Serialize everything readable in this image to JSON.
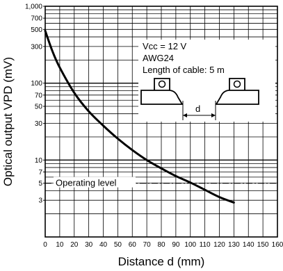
{
  "chart_data": {
    "type": "line",
    "xlabel": "Distance d (mm)",
    "ylabel": "Optical output VPD (mV)",
    "xlim": [
      0,
      160
    ],
    "ylim": [
      1,
      1000
    ],
    "y_scale": "log",
    "grid": true,
    "x_ticks": [
      "0",
      "10",
      "20",
      "30",
      "40",
      "50",
      "60",
      "70",
      "80",
      "90",
      "100",
      "110",
      "120",
      "130",
      "140",
      "150",
      "160"
    ],
    "y_ticks": [
      {
        "value": 1000,
        "label": "1,000"
      },
      {
        "value": 700,
        "label": "700"
      },
      {
        "value": 500,
        "label": "500"
      },
      {
        "value": 300,
        "label": "300"
      },
      {
        "value": 100,
        "label": "100"
      },
      {
        "value": 70,
        "label": "70"
      },
      {
        "value": 50,
        "label": "50"
      },
      {
        "value": 30,
        "label": "30"
      },
      {
        "value": 10,
        "label": "10"
      },
      {
        "value": 7,
        "label": "7"
      },
      {
        "value": 5,
        "label": "5"
      },
      {
        "value": 3,
        "label": "3"
      }
    ],
    "series": [
      {
        "x": [
          0,
          5,
          10,
          20,
          30,
          40,
          50,
          60,
          70,
          80,
          90,
          100,
          110,
          120,
          130
        ],
        "y": [
          480,
          260,
          160,
          75,
          43,
          28,
          19,
          13.5,
          10,
          7.8,
          6.2,
          5.1,
          4.1,
          3.3,
          2.8
        ]
      }
    ],
    "reference_line": {
      "value": 5,
      "label": "Operating level"
    },
    "annotations": [
      "Vcc = 12 V",
      "AWG24",
      "Length of cable: 5 m"
    ],
    "diagram_label": "d"
  }
}
